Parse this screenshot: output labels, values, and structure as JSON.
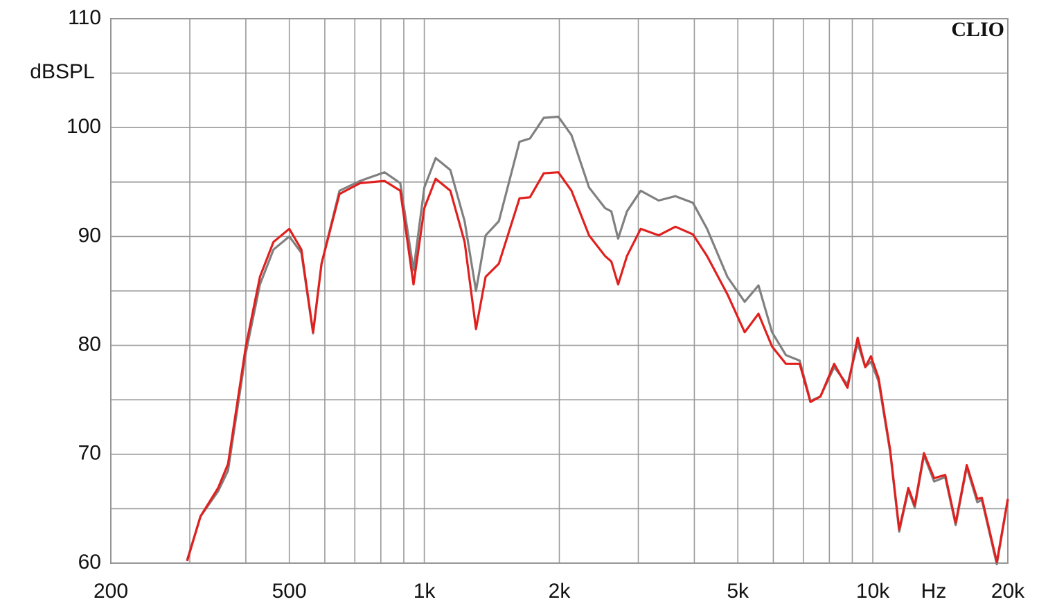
{
  "chart_data": {
    "type": "line",
    "xlabel": "Hz",
    "ylabel": "dBSPL",
    "watermark": "CLIO",
    "xscale": "log",
    "xlim": [
      200,
      20000
    ],
    "ylim": [
      60,
      110
    ],
    "xticks": [
      200,
      500,
      {
        "value": 1000,
        "label": "1k"
      },
      {
        "value": 2000,
        "label": "2k"
      },
      {
        "value": 5000,
        "label": "5k"
      },
      {
        "value": 10000,
        "label": "10k"
      },
      {
        "value": 20000,
        "label": "20k"
      }
    ],
    "xgrid": [
      300,
      400,
      600,
      700,
      800,
      900,
      3000,
      4000,
      6000,
      7000,
      8000,
      9000
    ],
    "yticks": [
      60,
      70,
      80,
      90,
      100,
      110
    ],
    "ygrid": [
      65,
      75,
      85,
      95,
      105
    ],
    "grid": true,
    "x": [
      296,
      317,
      347,
      365,
      400,
      430,
      461,
      500,
      532,
      565,
      590,
      647,
      719,
      815,
      884,
      946,
      1000,
      1060,
      1143,
      1230,
      1304,
      1370,
      1466,
      1630,
      1720,
      1846,
      1990,
      2129,
      2330,
      2530,
      2612,
      2705,
      2830,
      3037,
      3330,
      3630,
      3970,
      4270,
      4740,
      5180,
      5560,
      5960,
      6400,
      6870,
      7260,
      7640,
      8200,
      8780,
      9250,
      9620,
      9900,
      10300,
      10930,
      11450,
      12000,
      12400,
      13000,
      13700,
      14500,
      15300,
      16200,
      17100,
      17500,
      18900,
      20000
    ],
    "series": [
      {
        "color": "#808080",
        "values": [
          60.3,
          64.3,
          66.6,
          68.5,
          79.3,
          85.6,
          88.8,
          90.0,
          88.5,
          81.1,
          87.5,
          94.2,
          95.1,
          95.9,
          94.9,
          86.9,
          94.5,
          97.2,
          96.1,
          91.4,
          85.0,
          90.1,
          91.4,
          98.7,
          99.0,
          100.9,
          101.0,
          99.3,
          94.5,
          92.6,
          92.3,
          89.8,
          92.3,
          94.2,
          93.3,
          93.7,
          93.1,
          90.7,
          86.3,
          84.0,
          85.5,
          81.2,
          79.1,
          78.6,
          74.9,
          75.3,
          78.0,
          76.4,
          80.2,
          78.0,
          78.5,
          76.7,
          70.2,
          62.9,
          66.7,
          65.1,
          69.9,
          67.5,
          67.9,
          63.5,
          68.8,
          65.6,
          65.8,
          59.9,
          65.8
        ]
      },
      {
        "color": "#e0201e",
        "values": [
          60.2,
          64.3,
          66.9,
          69.1,
          79.9,
          86.3,
          89.5,
          90.7,
          88.8,
          81.2,
          87.5,
          93.9,
          94.9,
          95.1,
          94.2,
          85.6,
          92.6,
          95.3,
          94.2,
          89.5,
          81.5,
          86.3,
          87.5,
          93.5,
          93.6,
          95.8,
          95.9,
          94.2,
          90.1,
          88.2,
          87.7,
          85.6,
          88.2,
          90.7,
          90.1,
          90.9,
          90.2,
          88.2,
          84.7,
          81.2,
          82.9,
          79.9,
          78.3,
          78.3,
          74.8,
          75.3,
          78.3,
          76.1,
          80.7,
          78.0,
          79.0,
          77.0,
          70.4,
          63.1,
          66.9,
          65.3,
          70.1,
          67.8,
          68.1,
          63.7,
          69.0,
          65.9,
          66.0,
          60.1,
          65.9
        ]
      }
    ]
  }
}
